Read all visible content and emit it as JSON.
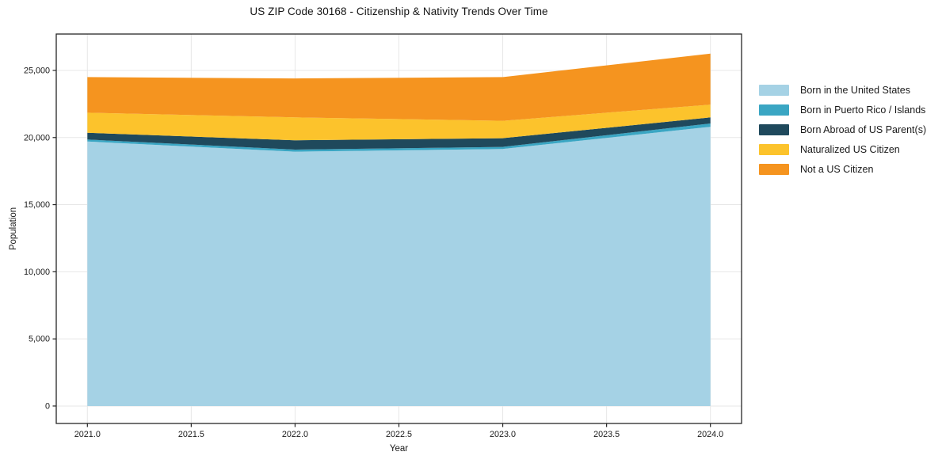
{
  "chart_data": {
    "type": "area",
    "stacked": true,
    "title": "US ZIP Code 30168 - Citizenship & Nativity Trends Over Time",
    "xlabel": "Year",
    "ylabel": "Population",
    "x": [
      2021,
      2022,
      2023,
      2024
    ],
    "series": [
      {
        "name": "Born in the United States",
        "color": "#a5d2e5",
        "values": [
          19700,
          18950,
          19150,
          20800
        ]
      },
      {
        "name": "Born in Puerto Rico / Islands",
        "color": "#3aa6c3",
        "values": [
          150,
          150,
          150,
          250
        ]
      },
      {
        "name": "Born Abroad of US Parent(s)",
        "color": "#1f495c",
        "values": [
          500,
          700,
          650,
          450
        ]
      },
      {
        "name": "Naturalized US Citizen",
        "color": "#fcc32c",
        "values": [
          1500,
          1700,
          1300,
          950
        ]
      },
      {
        "name": "Not a US Citizen",
        "color": "#f5941f",
        "values": [
          2650,
          2900,
          3250,
          3800
        ]
      }
    ],
    "totals": [
      24500,
      24400,
      24500,
      26250
    ],
    "xlim": [
      2020.85,
      2024.15
    ],
    "ylim": [
      -1300,
      27710
    ],
    "xticks": [
      2021.0,
      2021.5,
      2022.0,
      2022.5,
      2023.0,
      2023.5,
      2024.0
    ],
    "yticks": [
      0,
      5000,
      10000,
      15000,
      20000,
      25000
    ],
    "grid": true,
    "grid_color": "#e7e7e7",
    "spine_color": "#262626",
    "legend_position": "outside-right-top",
    "legend_order": [
      "Born in the United States",
      "Born in Puerto Rico / Islands",
      "Born Abroad of US Parent(s)",
      "Naturalized US Citizen",
      "Not a US Citizen"
    ]
  }
}
